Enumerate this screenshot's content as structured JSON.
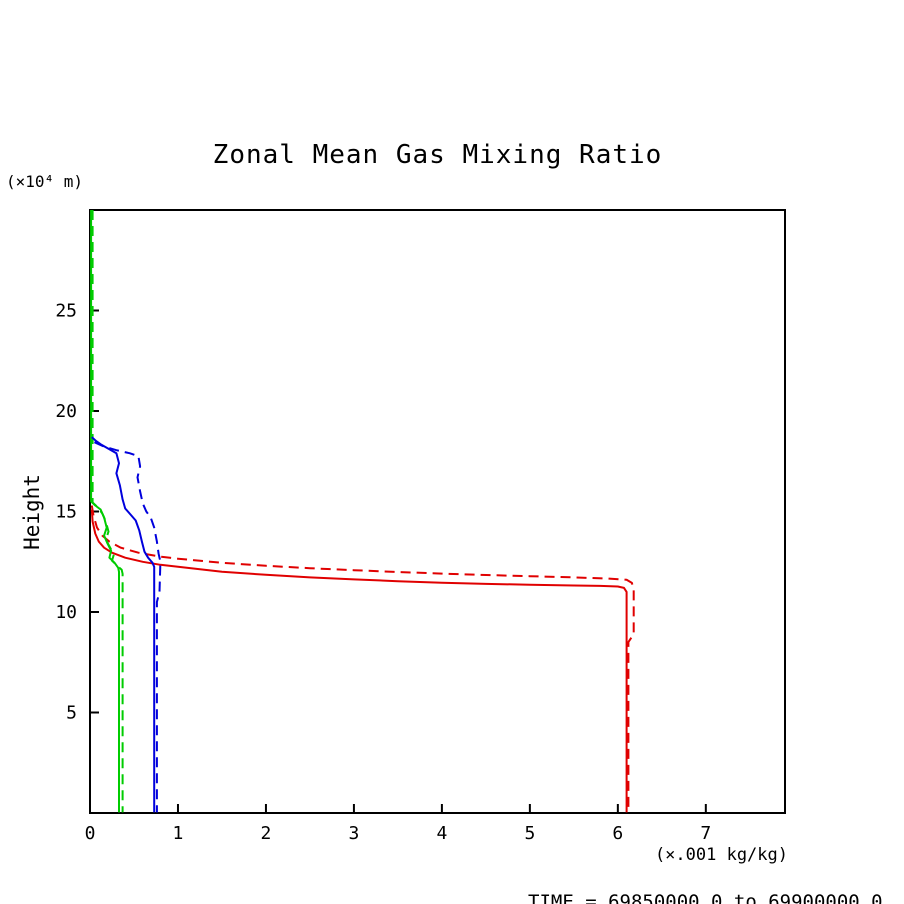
{
  "page": {
    "title": "Zonal Mean Gas Mixing Ratio",
    "y_axis_units": "(×10⁴ m)",
    "y_axis_label": "Height",
    "x_axis_units": "(×.001 kg/kg)",
    "time_annotation": "TIME = 69850000.0 to 69900000.0"
  },
  "chart_data": {
    "type": "line",
    "title": "Zonal Mean Gas Mixing Ratio",
    "xlabel": "(×.001 kg/kg)",
    "ylabel": "Height",
    "ylabel_units": "(×10⁴ m)",
    "annotation": "TIME = 69850000.0 to 69900000.0",
    "xlim": [
      0,
      7.9
    ],
    "ylim": [
      0,
      30
    ],
    "x_ticks": [
      0,
      1,
      2,
      3,
      4,
      5,
      6,
      7
    ],
    "y_ticks": [
      5,
      10,
      15,
      20,
      25
    ],
    "grid": false,
    "legend": false,
    "colors": {
      "red": "#e00000",
      "green": "#00cc00",
      "blue": "#0000dd"
    },
    "series": [
      {
        "name": "red-solid-profile",
        "color": "red",
        "style": "solid",
        "points": [
          [
            0.02,
            15.1
          ],
          [
            0.03,
            14.5
          ],
          [
            0.06,
            13.9
          ],
          [
            0.1,
            13.5
          ],
          [
            0.16,
            13.2
          ],
          [
            0.25,
            12.95
          ],
          [
            0.4,
            12.7
          ],
          [
            0.6,
            12.5
          ],
          [
            0.8,
            12.35
          ],
          [
            1.0,
            12.25
          ],
          [
            1.5,
            12.0
          ],
          [
            2.0,
            11.85
          ],
          [
            2.5,
            11.72
          ],
          [
            3.0,
            11.62
          ],
          [
            3.5,
            11.53
          ],
          [
            4.0,
            11.46
          ],
          [
            4.5,
            11.4
          ],
          [
            5.0,
            11.36
          ],
          [
            5.5,
            11.32
          ],
          [
            5.8,
            11.3
          ],
          [
            6.0,
            11.27
          ],
          [
            6.07,
            11.2
          ],
          [
            6.1,
            11.0
          ],
          [
            6.1,
            0.03
          ]
        ]
      },
      {
        "name": "red-dashed-profile",
        "color": "red",
        "style": "dashed",
        "points": [
          [
            0.02,
            15.3
          ],
          [
            0.04,
            14.8
          ],
          [
            0.08,
            14.2
          ],
          [
            0.14,
            13.8
          ],
          [
            0.22,
            13.5
          ],
          [
            0.35,
            13.2
          ],
          [
            0.55,
            12.95
          ],
          [
            0.8,
            12.75
          ],
          [
            1.0,
            12.65
          ],
          [
            1.5,
            12.45
          ],
          [
            2.0,
            12.3
          ],
          [
            2.5,
            12.18
          ],
          [
            3.0,
            12.08
          ],
          [
            3.5,
            11.99
          ],
          [
            4.0,
            11.91
          ],
          [
            4.5,
            11.84
          ],
          [
            5.0,
            11.78
          ],
          [
            5.5,
            11.72
          ],
          [
            5.9,
            11.66
          ],
          [
            6.1,
            11.6
          ],
          [
            6.16,
            11.45
          ],
          [
            6.18,
            11.1
          ],
          [
            6.18,
            8.9
          ],
          [
            6.12,
            8.5
          ],
          [
            6.12,
            0.03
          ]
        ]
      },
      {
        "name": "green-solid-profile",
        "color": "green",
        "style": "solid",
        "points": [
          [
            0.012,
            30
          ],
          [
            0.012,
            15.5
          ],
          [
            0.06,
            15.3
          ],
          [
            0.12,
            15.1
          ],
          [
            0.16,
            14.7
          ],
          [
            0.19,
            14.2
          ],
          [
            0.16,
            13.8
          ],
          [
            0.2,
            13.4
          ],
          [
            0.24,
            13.05
          ],
          [
            0.22,
            12.7
          ],
          [
            0.28,
            12.45
          ],
          [
            0.32,
            12.2
          ],
          [
            0.33,
            12.0
          ],
          [
            0.33,
            0.03
          ]
        ]
      },
      {
        "name": "green-dashed-profile",
        "color": "green",
        "style": "dashed",
        "points": [
          [
            0.03,
            30
          ],
          [
            0.03,
            15.45
          ],
          [
            0.09,
            15.2
          ],
          [
            0.14,
            14.9
          ],
          [
            0.18,
            14.5
          ],
          [
            0.21,
            14.0
          ],
          [
            0.18,
            13.6
          ],
          [
            0.23,
            13.2
          ],
          [
            0.27,
            12.85
          ],
          [
            0.25,
            12.55
          ],
          [
            0.31,
            12.3
          ],
          [
            0.36,
            12.1
          ],
          [
            0.37,
            11.9
          ],
          [
            0.37,
            0.03
          ]
        ]
      },
      {
        "name": "blue-solid-profile",
        "color": "blue",
        "style": "solid",
        "points": [
          [
            0.02,
            18.7
          ],
          [
            0.07,
            18.5
          ],
          [
            0.12,
            18.35
          ],
          [
            0.2,
            18.15
          ],
          [
            0.3,
            17.9
          ],
          [
            0.33,
            17.4
          ],
          [
            0.3,
            16.9
          ],
          [
            0.34,
            16.3
          ],
          [
            0.37,
            15.6
          ],
          [
            0.4,
            15.15
          ],
          [
            0.46,
            14.85
          ],
          [
            0.52,
            14.55
          ],
          [
            0.56,
            14.05
          ],
          [
            0.59,
            13.5
          ],
          [
            0.62,
            13.0
          ],
          [
            0.66,
            12.7
          ],
          [
            0.71,
            12.45
          ],
          [
            0.73,
            12.25
          ],
          [
            0.73,
            0.03
          ]
        ]
      },
      {
        "name": "blue-dashed-profile",
        "color": "blue",
        "style": "dashed",
        "points": [
          [
            0.05,
            18.45
          ],
          [
            0.15,
            18.25
          ],
          [
            0.3,
            18.05
          ],
          [
            0.45,
            17.9
          ],
          [
            0.55,
            17.75
          ],
          [
            0.57,
            17.25
          ],
          [
            0.54,
            16.7
          ],
          [
            0.57,
            16.0
          ],
          [
            0.6,
            15.4
          ],
          [
            0.64,
            15.0
          ],
          [
            0.69,
            14.7
          ],
          [
            0.73,
            14.2
          ],
          [
            0.76,
            13.5
          ],
          [
            0.78,
            12.9
          ],
          [
            0.8,
            12.5
          ],
          [
            0.79,
            11.0
          ],
          [
            0.76,
            10.5
          ],
          [
            0.76,
            0.03
          ]
        ]
      }
    ]
  }
}
